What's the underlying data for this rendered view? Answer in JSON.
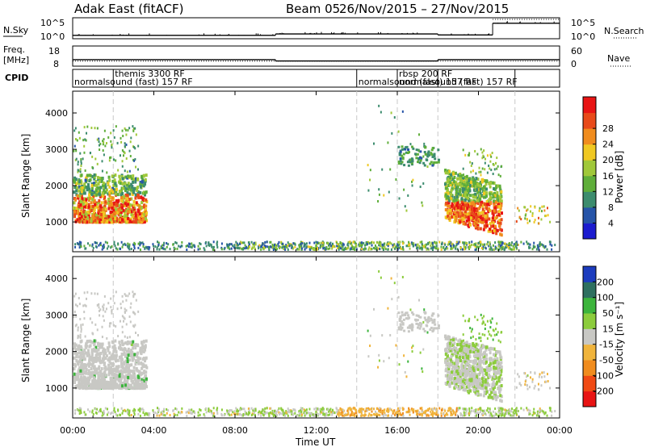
{
  "header": {
    "title": "Adak East (fitACF)",
    "beam": "Beam 05",
    "dates": "26/Nov/2015 – 27/Nov/2015"
  },
  "nsky": {
    "label": "N.Sky",
    "tick_top": "10^5",
    "tick_bottom": "10^0",
    "right_tick_top": "10^5",
    "right_tick_bottom": "10^0",
    "right_label": "N.Search"
  },
  "freq": {
    "label_1": "Freq.",
    "label_2": "[MHz]",
    "tick_top": "18",
    "tick_bottom": "8",
    "right_tick_top": "60",
    "right_tick_bottom": "0",
    "right_label": "Nave"
  },
  "cpid": {
    "label": "CPID",
    "entries": [
      {
        "t": 0.0,
        "row": 2,
        "text": "normalsound (fast) 157 RF"
      },
      {
        "t": 2.0,
        "row": 1,
        "text": "themis 3300 RF"
      },
      {
        "t": 14.0,
        "row": 2,
        "text": "normalsound (fast) 157 RF"
      },
      {
        "t": 16.0,
        "row": 1,
        "text": "rbsp 200 RF"
      },
      {
        "t": 16.0,
        "row": 2,
        "text": "normalsound (fast) 157 RF"
      }
    ],
    "boundaries": [
      2.0,
      14.0,
      16.0,
      18.0,
      21.8
    ]
  },
  "power_panel": {
    "ylabel": "Slant Range [km]",
    "yticks": [
      "1000",
      "2000",
      "3000",
      "4000"
    ],
    "colorbar_label": "Power [dB]",
    "colorbar_ticks": [
      "4",
      "8",
      "12",
      "16",
      "20",
      "24",
      "28"
    ],
    "colors": [
      "#1c1ccf",
      "#2654a8",
      "#3c8c6e",
      "#5fae3a",
      "#a0c83a",
      "#f0c822",
      "#f08c1e",
      "#e84a1a",
      "#e81414"
    ]
  },
  "velocity_panel": {
    "ylabel": "Slant Range [km]",
    "yticks": [
      "1000",
      "2000",
      "3000",
      "4000"
    ],
    "colorbar_label": "Velocity [m s⁻¹]",
    "colorbar_ticks": [
      "-200",
      "-100",
      "-50",
      "-15",
      "15",
      "50",
      "100",
      "200"
    ],
    "colors": [
      "#e81414",
      "#f04a14",
      "#f08c1e",
      "#f0b43c",
      "#c8c8c4",
      "#8ccc3c",
      "#3cb43c",
      "#2e7060",
      "#1c3cbe"
    ]
  },
  "xaxis": {
    "label": "Time UT",
    "ticks": [
      "00:00",
      "04:00",
      "08:00",
      "12:00",
      "16:00",
      "20:00",
      "00:00"
    ]
  },
  "chart_data": {
    "type": "heatmap",
    "title": "Adak East (fitACF)",
    "subtitle": "Beam 05 26/Nov/2015 – 27/Nov/2015",
    "xlabel": "Time UT",
    "ylabel": "Slant Range [km]",
    "xlim_hours": [
      0,
      24
    ],
    "ylim_km": [
      180,
      4600
    ],
    "power_colorbar": {
      "label": "Power [dB]",
      "range": [
        0,
        30
      ]
    },
    "velocity_colorbar": {
      "label": "Velocity [m s⁻¹]",
      "range": [
        -250,
        250
      ]
    },
    "scatter_regions": [
      {
        "name": "morning",
        "t": [
          0.0,
          3.6
        ],
        "range_km": [
          950,
          3600
        ],
        "power_db": [
          6,
          30
        ],
        "velocity": [
          -15,
          15
        ]
      },
      {
        "name": "near-range",
        "t": [
          0.0,
          24.0
        ],
        "range_km": [
          200,
          450
        ],
        "power_db": [
          4,
          16
        ],
        "velocity": [
          -50,
          50
        ]
      },
      {
        "name": "evening",
        "t": [
          18.0,
          21.2
        ],
        "range_km": [
          950,
          3000
        ],
        "power_db": [
          10,
          30
        ],
        "velocity": [
          -15,
          50
        ]
      },
      {
        "name": "ground scatter 17h",
        "t": [
          16.0,
          18.0
        ],
        "range_km": [
          2500,
          3100
        ],
        "power_db": [
          6,
          12
        ],
        "velocity": [
          -15,
          15
        ]
      }
    ],
    "nsky_level_log10": [
      {
        "t": [
          0,
          10
        ],
        "v": 0.5
      },
      {
        "t": [
          10,
          18
        ],
        "v": 0.9
      },
      {
        "t": [
          18,
          20.7
        ],
        "v": 0.6
      },
      {
        "t": [
          20.7,
          24
        ],
        "v": 3.9
      }
    ],
    "frequency_mhz": [
      {
        "t": [
          0,
          10
        ],
        "v": 10.9
      },
      {
        "t": [
          10,
          18
        ],
        "v": 10.1
      },
      {
        "t": [
          18,
          24
        ],
        "v": 10.9
      }
    ],
    "nave": [
      {
        "t": [
          0,
          10
        ],
        "v": 12
      },
      {
        "t": [
          10,
          18
        ],
        "v": 12
      },
      {
        "t": [
          18,
          24
        ],
        "v": 12
      }
    ]
  }
}
